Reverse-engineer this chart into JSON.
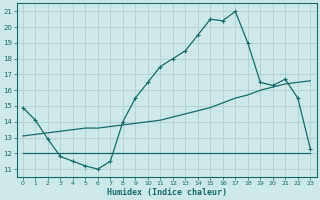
{
  "xlabel": "Humidex (Indice chaleur)",
  "ylabel": "",
  "bg_color": "#cde8e8",
  "grid_color": "#aacccc",
  "line_color": "#1a6b6b",
  "xlim": [
    -0.5,
    23.5
  ],
  "ylim": [
    10.5,
    21.5
  ],
  "xticks": [
    0,
    1,
    2,
    3,
    4,
    5,
    6,
    7,
    8,
    9,
    10,
    11,
    12,
    13,
    14,
    15,
    16,
    17,
    18,
    19,
    20,
    21,
    22,
    23
  ],
  "yticks": [
    11,
    12,
    13,
    14,
    15,
    16,
    17,
    18,
    19,
    20,
    21
  ],
  "line1_x": [
    0,
    1,
    2,
    3,
    4,
    5,
    6,
    7,
    8,
    9,
    10,
    11,
    12,
    13,
    14,
    15,
    16,
    17,
    18,
    19,
    20,
    21,
    22,
    23
  ],
  "line1_y": [
    14.9,
    14.1,
    12.9,
    11.8,
    11.5,
    11.2,
    11.0,
    11.5,
    14.0,
    15.5,
    16.5,
    17.5,
    18.0,
    18.5,
    19.5,
    20.5,
    20.4,
    21.0,
    19.0,
    16.5,
    16.3,
    16.7,
    15.5,
    12.3
  ],
  "line2_x": [
    0,
    1,
    2,
    3,
    4,
    5,
    6,
    7,
    8,
    9,
    10,
    11,
    12,
    13,
    14,
    15,
    16,
    17,
    18,
    19,
    20,
    21,
    22,
    23
  ],
  "line2_y": [
    13.1,
    13.2,
    13.3,
    13.4,
    13.5,
    13.6,
    13.6,
    13.7,
    13.8,
    13.9,
    14.0,
    14.1,
    14.3,
    14.5,
    14.7,
    14.9,
    15.2,
    15.5,
    15.7,
    16.0,
    16.2,
    16.4,
    16.5,
    16.6
  ],
  "line3_x": [
    0,
    1,
    2,
    3,
    4,
    5,
    6,
    7,
    8,
    9,
    10,
    11,
    12,
    13,
    14,
    15,
    16,
    17,
    18,
    19,
    20,
    21,
    22,
    23
  ],
  "line3_y": [
    12.0,
    12.0,
    12.0,
    12.0,
    12.0,
    12.0,
    12.0,
    12.0,
    12.0,
    12.0,
    12.0,
    12.0,
    12.0,
    12.0,
    12.0,
    12.0,
    12.0,
    12.0,
    12.0,
    12.0,
    12.0,
    12.0,
    12.0,
    12.0
  ]
}
